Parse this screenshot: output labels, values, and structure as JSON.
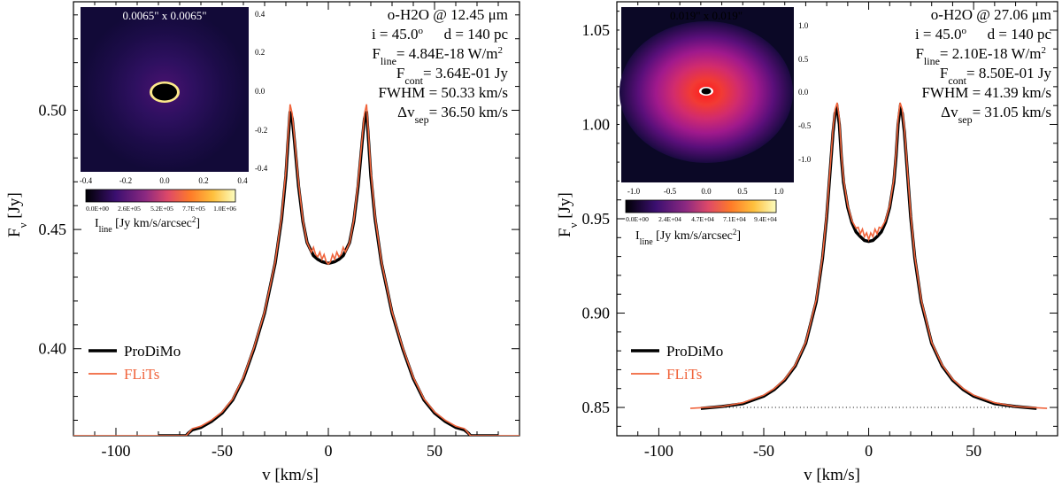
{
  "chart_data": [
    {
      "type": "line",
      "xlabel": "v [km/s]",
      "ylabel_main": "F",
      "ylabel_sub": "ν",
      "ylabel_unit": " [Jy]",
      "xlim": [
        -120,
        90
      ],
      "ylim": [
        0.3635,
        0.5455
      ],
      "xticks": [
        -100,
        -50,
        0,
        50
      ],
      "xtick_labels": [
        "-100",
        "-50",
        "0",
        "50"
      ],
      "yticks": [
        0.4,
        0.45,
        0.5
      ],
      "ytick_labels": [
        "0.40",
        "0.45",
        "0.50"
      ],
      "continuum": 0.3635,
      "legend": {
        "position": "lower-left",
        "entries": [
          "ProDiMo",
          "FLiTs"
        ]
      },
      "series": [
        {
          "name": "ProDiMo",
          "color": "#000000",
          "x": [
            -80,
            -67,
            -66,
            -64,
            -62,
            -60,
            -55,
            -50,
            -45,
            -40,
            -35,
            -30,
            -25,
            -22,
            -20,
            -19,
            -18,
            -17,
            -16,
            -14,
            -12,
            -10,
            -7,
            -5,
            -3,
            -1,
            0,
            1,
            3,
            5,
            7,
            10,
            12,
            14,
            16,
            17,
            18,
            19,
            20,
            22,
            25,
            30,
            35,
            40,
            45,
            50,
            55,
            60,
            62,
            64,
            66,
            67,
            80
          ],
          "y": [
            0.3635,
            0.3635,
            0.3645,
            0.366,
            0.3665,
            0.367,
            0.3695,
            0.373,
            0.3785,
            0.3875,
            0.4,
            0.415,
            0.436,
            0.4545,
            0.4725,
            0.4865,
            0.4995,
            0.4965,
            0.4875,
            0.468,
            0.4535,
            0.4445,
            0.439,
            0.4375,
            0.4365,
            0.436,
            0.4358,
            0.436,
            0.4365,
            0.4375,
            0.439,
            0.4445,
            0.4535,
            0.468,
            0.4875,
            0.4965,
            0.4995,
            0.4865,
            0.4725,
            0.4545,
            0.436,
            0.415,
            0.4,
            0.3875,
            0.3785,
            0.373,
            0.3695,
            0.367,
            0.3665,
            0.366,
            0.3645,
            0.3635,
            0.3635
          ]
        },
        {
          "name": "FLiTs",
          "color": "#f0643c",
          "x": [
            -120,
            -80,
            -67,
            -66,
            -64,
            -62,
            -60,
            -55,
            -50,
            -45,
            -40,
            -35,
            -30,
            -25,
            -22,
            -20,
            -19,
            -18,
            -17,
            -16,
            -14,
            -12,
            -10,
            -8,
            -7,
            -6,
            -5,
            -4,
            -3,
            -2,
            -1,
            0,
            1,
            2,
            3,
            4,
            5,
            6,
            7,
            8,
            10,
            12,
            14,
            16,
            17,
            18,
            19,
            20,
            22,
            25,
            30,
            35,
            40,
            45,
            50,
            55,
            60,
            62,
            64,
            66,
            67,
            80,
            90
          ],
          "y": [
            0.3635,
            0.3635,
            0.3635,
            0.3645,
            0.3665,
            0.367,
            0.3675,
            0.37,
            0.3735,
            0.379,
            0.388,
            0.4005,
            0.4155,
            0.4365,
            0.4555,
            0.4745,
            0.489,
            0.5025,
            0.4985,
            0.489,
            0.4695,
            0.454,
            0.4445,
            0.4405,
            0.4425,
            0.4395,
            0.4385,
            0.4405,
            0.4375,
            0.4395,
            0.4365,
            0.4355,
            0.4365,
            0.4395,
            0.4375,
            0.4405,
            0.4385,
            0.4395,
            0.4425,
            0.4405,
            0.4445,
            0.454,
            0.4695,
            0.489,
            0.4985,
            0.5025,
            0.489,
            0.4745,
            0.4555,
            0.4365,
            0.4155,
            0.4005,
            0.388,
            0.379,
            0.3735,
            0.37,
            0.3675,
            0.367,
            0.3665,
            0.3645,
            0.3635,
            0.3635,
            0.3635
          ]
        }
      ],
      "annotation": {
        "line1": "o-H2O @ 12.45 μm",
        "incl": "i = 45.0",
        "incl_sup": "o",
        "dist": "d = 140 pc",
        "fline_main": "F",
        "fline_sub": "line",
        "fline_val": "= 4.84E-18 W/m",
        "fline_sup": "2",
        "fcont_main": "F",
        "fcont_sub": "cont",
        "fcont_val": "= 3.64E-01 Jy",
        "fwhm": "FWHM = 50.33 km/s",
        "dv_main": "Δv",
        "dv_sub": "sep",
        "dv_val": "= 36.50 km/s"
      },
      "inset": {
        "title": "0.0065\" x 0.0065\"",
        "xtick_labels": [
          "-0.4",
          "-0.2",
          "0.0",
          "0.2",
          "0.4"
        ],
        "ytick_labels": [
          "0.4",
          "0.2",
          "0.0",
          "-0.2",
          "-0.4"
        ],
        "colorbar_labels": [
          "0.0E+00",
          "2.6E+05",
          "5.2E+05",
          "7.7E+05",
          "1.0E+06"
        ],
        "colorbar_title_main": "I",
        "colorbar_title_sub": "line",
        "colorbar_title_rest": " [Jy km/s/arcsec",
        "colorbar_title_sup": "2",
        "colorbar_title_end": "]"
      }
    },
    {
      "type": "line",
      "xlabel": "v [km/s]",
      "ylabel_main": "F",
      "ylabel_sub": "ν",
      "ylabel_unit": " [Jy]",
      "xlim": [
        -120,
        90
      ],
      "ylim": [
        0.835,
        1.065
      ],
      "xticks": [
        -100,
        -50,
        0,
        50
      ],
      "xtick_labels": [
        "-100",
        "-50",
        "0",
        "50"
      ],
      "yticks": [
        0.85,
        0.9,
        0.95,
        1.0,
        1.05
      ],
      "ytick_labels": [
        "0.85",
        "0.90",
        "0.95",
        "1.00",
        "1.05"
      ],
      "continuum": 0.85,
      "legend": {
        "position": "lower-left",
        "entries": [
          "ProDiMo",
          "FLiTs"
        ]
      },
      "series": [
        {
          "name": "ProDiMo",
          "color": "#000000",
          "x": [
            -80,
            -70,
            -60,
            -50,
            -45,
            -40,
            -35,
            -30,
            -25,
            -22,
            -20,
            -18,
            -17,
            -16,
            -15,
            -14,
            -13,
            -12,
            -10,
            -8,
            -6,
            -4,
            -2,
            0,
            2,
            4,
            6,
            8,
            10,
            12,
            13,
            14,
            15,
            16,
            17,
            18,
            20,
            22,
            25,
            30,
            35,
            40,
            45,
            50,
            60,
            70,
            80
          ],
          "y": [
            0.8495,
            0.8505,
            0.852,
            0.856,
            0.8595,
            0.8645,
            0.872,
            0.884,
            0.906,
            0.929,
            0.951,
            0.981,
            0.996,
            1.006,
            1.0085,
            1.0,
            0.9825,
            0.9695,
            0.956,
            0.948,
            0.943,
            0.9405,
            0.9385,
            0.938,
            0.9385,
            0.9405,
            0.943,
            0.948,
            0.956,
            0.9695,
            0.9825,
            1.0,
            1.0085,
            1.006,
            0.996,
            0.981,
            0.951,
            0.929,
            0.906,
            0.884,
            0.872,
            0.8645,
            0.8595,
            0.856,
            0.852,
            0.8505,
            0.8495
          ]
        },
        {
          "name": "FLiTs",
          "color": "#f0643c",
          "x": [
            -85,
            -70,
            -60,
            -50,
            -45,
            -40,
            -35,
            -30,
            -25,
            -22,
            -20,
            -18,
            -17,
            -16,
            -15,
            -14,
            -13,
            -12,
            -10,
            -8,
            -6,
            -5,
            -4,
            -3,
            -2,
            -1,
            0,
            1,
            2,
            3,
            4,
            5,
            6,
            8,
            10,
            12,
            13,
            14,
            15,
            16,
            17,
            18,
            20,
            22,
            25,
            30,
            35,
            40,
            45,
            50,
            60,
            70,
            85
          ],
          "y": [
            0.8495,
            0.8505,
            0.8525,
            0.8565,
            0.86,
            0.865,
            0.8725,
            0.8845,
            0.907,
            0.93,
            0.9525,
            0.9825,
            0.998,
            1.008,
            1.0115,
            1.003,
            0.9845,
            0.971,
            0.957,
            0.949,
            0.945,
            0.9455,
            0.942,
            0.9445,
            0.9405,
            0.9425,
            0.939,
            0.9425,
            0.9405,
            0.9445,
            0.942,
            0.9455,
            0.945,
            0.949,
            0.957,
            0.971,
            0.9845,
            1.003,
            1.0115,
            1.008,
            0.998,
            0.9825,
            0.9525,
            0.93,
            0.907,
            0.8845,
            0.8725,
            0.865,
            0.86,
            0.8565,
            0.8525,
            0.8505,
            0.8495
          ]
        }
      ],
      "annotation": {
        "line1": "o-H2O @ 27.06 μm",
        "incl": "i = 45.0",
        "incl_sup": "o",
        "dist": "d = 140 pc",
        "fline_main": "F",
        "fline_sub": "line",
        "fline_val": "= 2.10E-18 W/m",
        "fline_sup": "2",
        "fcont_main": "F",
        "fcont_sub": "cont",
        "fcont_val": "= 8.50E-01 Jy",
        "fwhm": "FWHM = 41.39 km/s",
        "dv_main": "Δv",
        "dv_sub": "sep",
        "dv_val": "= 31.05 km/s"
      },
      "inset": {
        "title": "0.019\" x 0.019\"",
        "xtick_labels": [
          "-1.0",
          "-0.5",
          "0.0",
          "0.5",
          "1.0"
        ],
        "ytick_labels": [
          "1.0",
          "0.5",
          "0.0",
          "-0.5",
          "-1.0"
        ],
        "colorbar_labels": [
          "0.0E+00",
          "2.4E+04",
          "4.7E+04",
          "7.1E+04",
          "9.4E+04"
        ],
        "colorbar_title_main": "I",
        "colorbar_title_sub": "line",
        "colorbar_title_rest": " [Jy km/s/arcsec",
        "colorbar_title_sup": "2",
        "colorbar_title_end": "]"
      }
    }
  ]
}
